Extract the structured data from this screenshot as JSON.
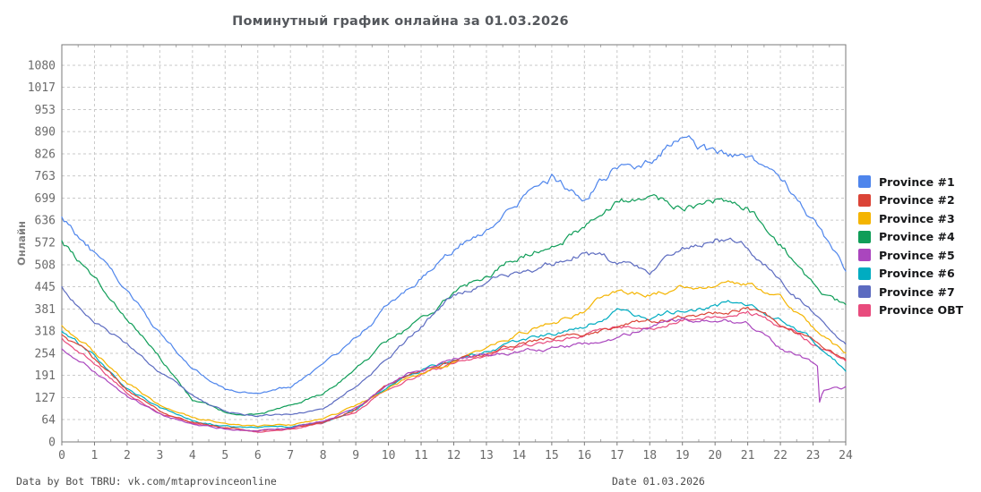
{
  "title": "Поминутный график онлайна за 01.03.2026",
  "y_axis": {
    "title": "Онлайн"
  },
  "footer": {
    "left": "Data by Bot TBRU: vk.com/mtaprovinceonline",
    "right": "Date 01.03.2026"
  },
  "chart_data": {
    "type": "line",
    "title": "Поминутный график онлайна за 01.03.2026",
    "xlabel": "",
    "ylabel": "Онлайн",
    "x_hours": [
      0,
      1,
      2,
      3,
      4,
      5,
      6,
      7,
      8,
      9,
      10,
      11,
      12,
      13,
      14,
      15,
      16,
      17,
      18,
      19,
      20,
      21,
      22,
      23,
      24
    ],
    "x_ticks": [
      "0",
      "1",
      "2",
      "3",
      "4",
      "5",
      "6",
      "7",
      "8",
      "9",
      "10",
      "11",
      "12",
      "13",
      "14",
      "15",
      "16",
      "17",
      "18",
      "19",
      "20",
      "21",
      "22",
      "23",
      "24"
    ],
    "y_ticks": [
      0,
      64,
      127,
      191,
      254,
      318,
      381,
      445,
      508,
      572,
      636,
      699,
      763,
      826,
      890,
      953,
      1017,
      1080
    ],
    "ylim": [
      0,
      1139
    ],
    "grid": true,
    "legend_position": "right",
    "grid_color": "#c9c9c9",
    "border_color": "#7a7a7a",
    "series": [
      {
        "name": "Province #1",
        "color": "#4e85ec",
        "values": [
          650,
          540,
          425,
          310,
          215,
          150,
          143,
          160,
          215,
          295,
          390,
          470,
          550,
          615,
          685,
          755,
          700,
          795,
          805,
          885,
          820,
          830,
          755,
          640,
          495
        ]
      },
      {
        "name": "Province #2",
        "color": "#db4437",
        "values": [
          310,
          235,
          150,
          90,
          55,
          40,
          32,
          38,
          55,
          95,
          165,
          205,
          230,
          255,
          285,
          300,
          310,
          330,
          345,
          360,
          370,
          385,
          340,
          290,
          238
        ]
      },
      {
        "name": "Province #3",
        "color": "#f4b400",
        "values": [
          330,
          255,
          170,
          105,
          70,
          55,
          45,
          50,
          65,
          100,
          155,
          200,
          230,
          270,
          310,
          340,
          375,
          435,
          425,
          445,
          450,
          455,
          420,
          330,
          252
        ]
      },
      {
        "name": "Province #4",
        "color": "#0f9d58",
        "values": [
          570,
          470,
          360,
          240,
          120,
          85,
          80,
          100,
          140,
          210,
          290,
          350,
          425,
          480,
          530,
          565,
          615,
          700,
          690,
          678,
          695,
          675,
          575,
          446,
          390
        ]
      },
      {
        "name": "Province #5",
        "color": "#aa46be",
        "values": [
          270,
          205,
          130,
          80,
          50,
          38,
          33,
          40,
          60,
          100,
          165,
          210,
          235,
          255,
          262,
          268,
          280,
          300,
          335,
          350,
          362,
          340,
          265,
          228,
          157
        ],
        "override": [
          [
            22.9,
            231
          ],
          [
            23.05,
            222
          ],
          [
            23.14,
            215
          ],
          [
            23.18,
            106
          ],
          [
            23.22,
            118
          ],
          [
            23.3,
            146
          ],
          [
            23.5,
            152
          ],
          [
            23.7,
            158
          ],
          [
            23.85,
            150
          ],
          [
            24,
            157
          ]
        ]
      },
      {
        "name": "Province #6",
        "color": "#00acc1",
        "values": [
          320,
          245,
          155,
          95,
          60,
          45,
          38,
          42,
          58,
          95,
          160,
          205,
          235,
          260,
          290,
          310,
          330,
          370,
          355,
          378,
          392,
          400,
          350,
          290,
          205
        ]
      },
      {
        "name": "Province #7",
        "color": "#5c6bc0",
        "values": [
          440,
          360,
          280,
          200,
          130,
          85,
          75,
          80,
          95,
          160,
          245,
          330,
          420,
          465,
          490,
          510,
          545,
          515,
          495,
          545,
          585,
          550,
          480,
          370,
          278
        ]
      },
      {
        "name": "Province OBT",
        "color": "#e84b7d",
        "values": [
          295,
          225,
          140,
          85,
          52,
          38,
          30,
          36,
          52,
          90,
          155,
          195,
          222,
          250,
          278,
          295,
          305,
          325,
          338,
          352,
          362,
          378,
          332,
          283,
          232
        ]
      }
    ]
  }
}
